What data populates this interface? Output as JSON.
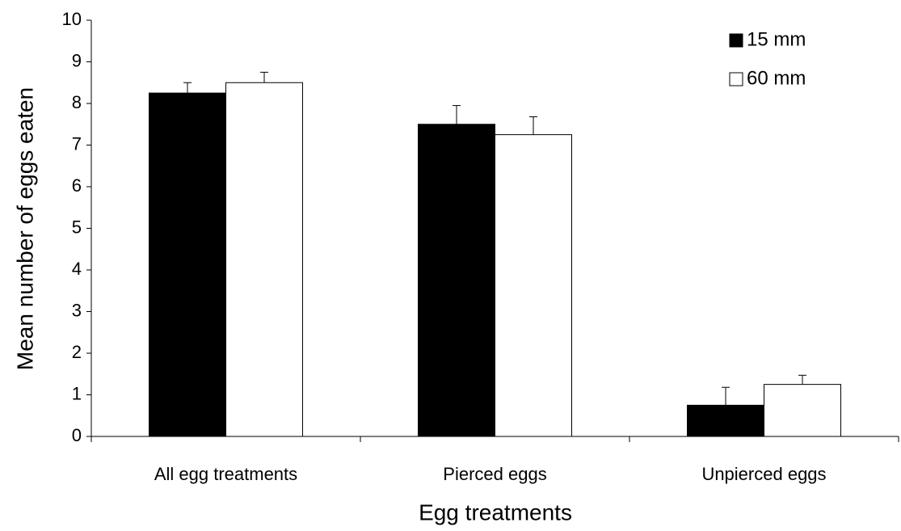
{
  "chart_data": {
    "type": "bar",
    "xlabel": "Egg treatments",
    "ylabel": "Mean number of eggs eaten",
    "categories": [
      "All egg treatments",
      "Pierced eggs",
      "Unpierced eggs"
    ],
    "series": [
      {
        "name": "15 mm",
        "color": "#000000",
        "values": [
          8.25,
          7.5,
          0.75
        ],
        "errors": [
          0.25,
          0.45,
          0.43
        ]
      },
      {
        "name": "60 mm",
        "color": "#ffffff",
        "values": [
          8.5,
          7.25,
          1.25
        ],
        "errors": [
          0.25,
          0.43,
          0.22
        ]
      }
    ],
    "ylim": [
      0,
      10
    ],
    "yticks": [
      0,
      1,
      2,
      3,
      4,
      5,
      6,
      7,
      8,
      9,
      10
    ],
    "grid": false,
    "legend": "top-right"
  }
}
